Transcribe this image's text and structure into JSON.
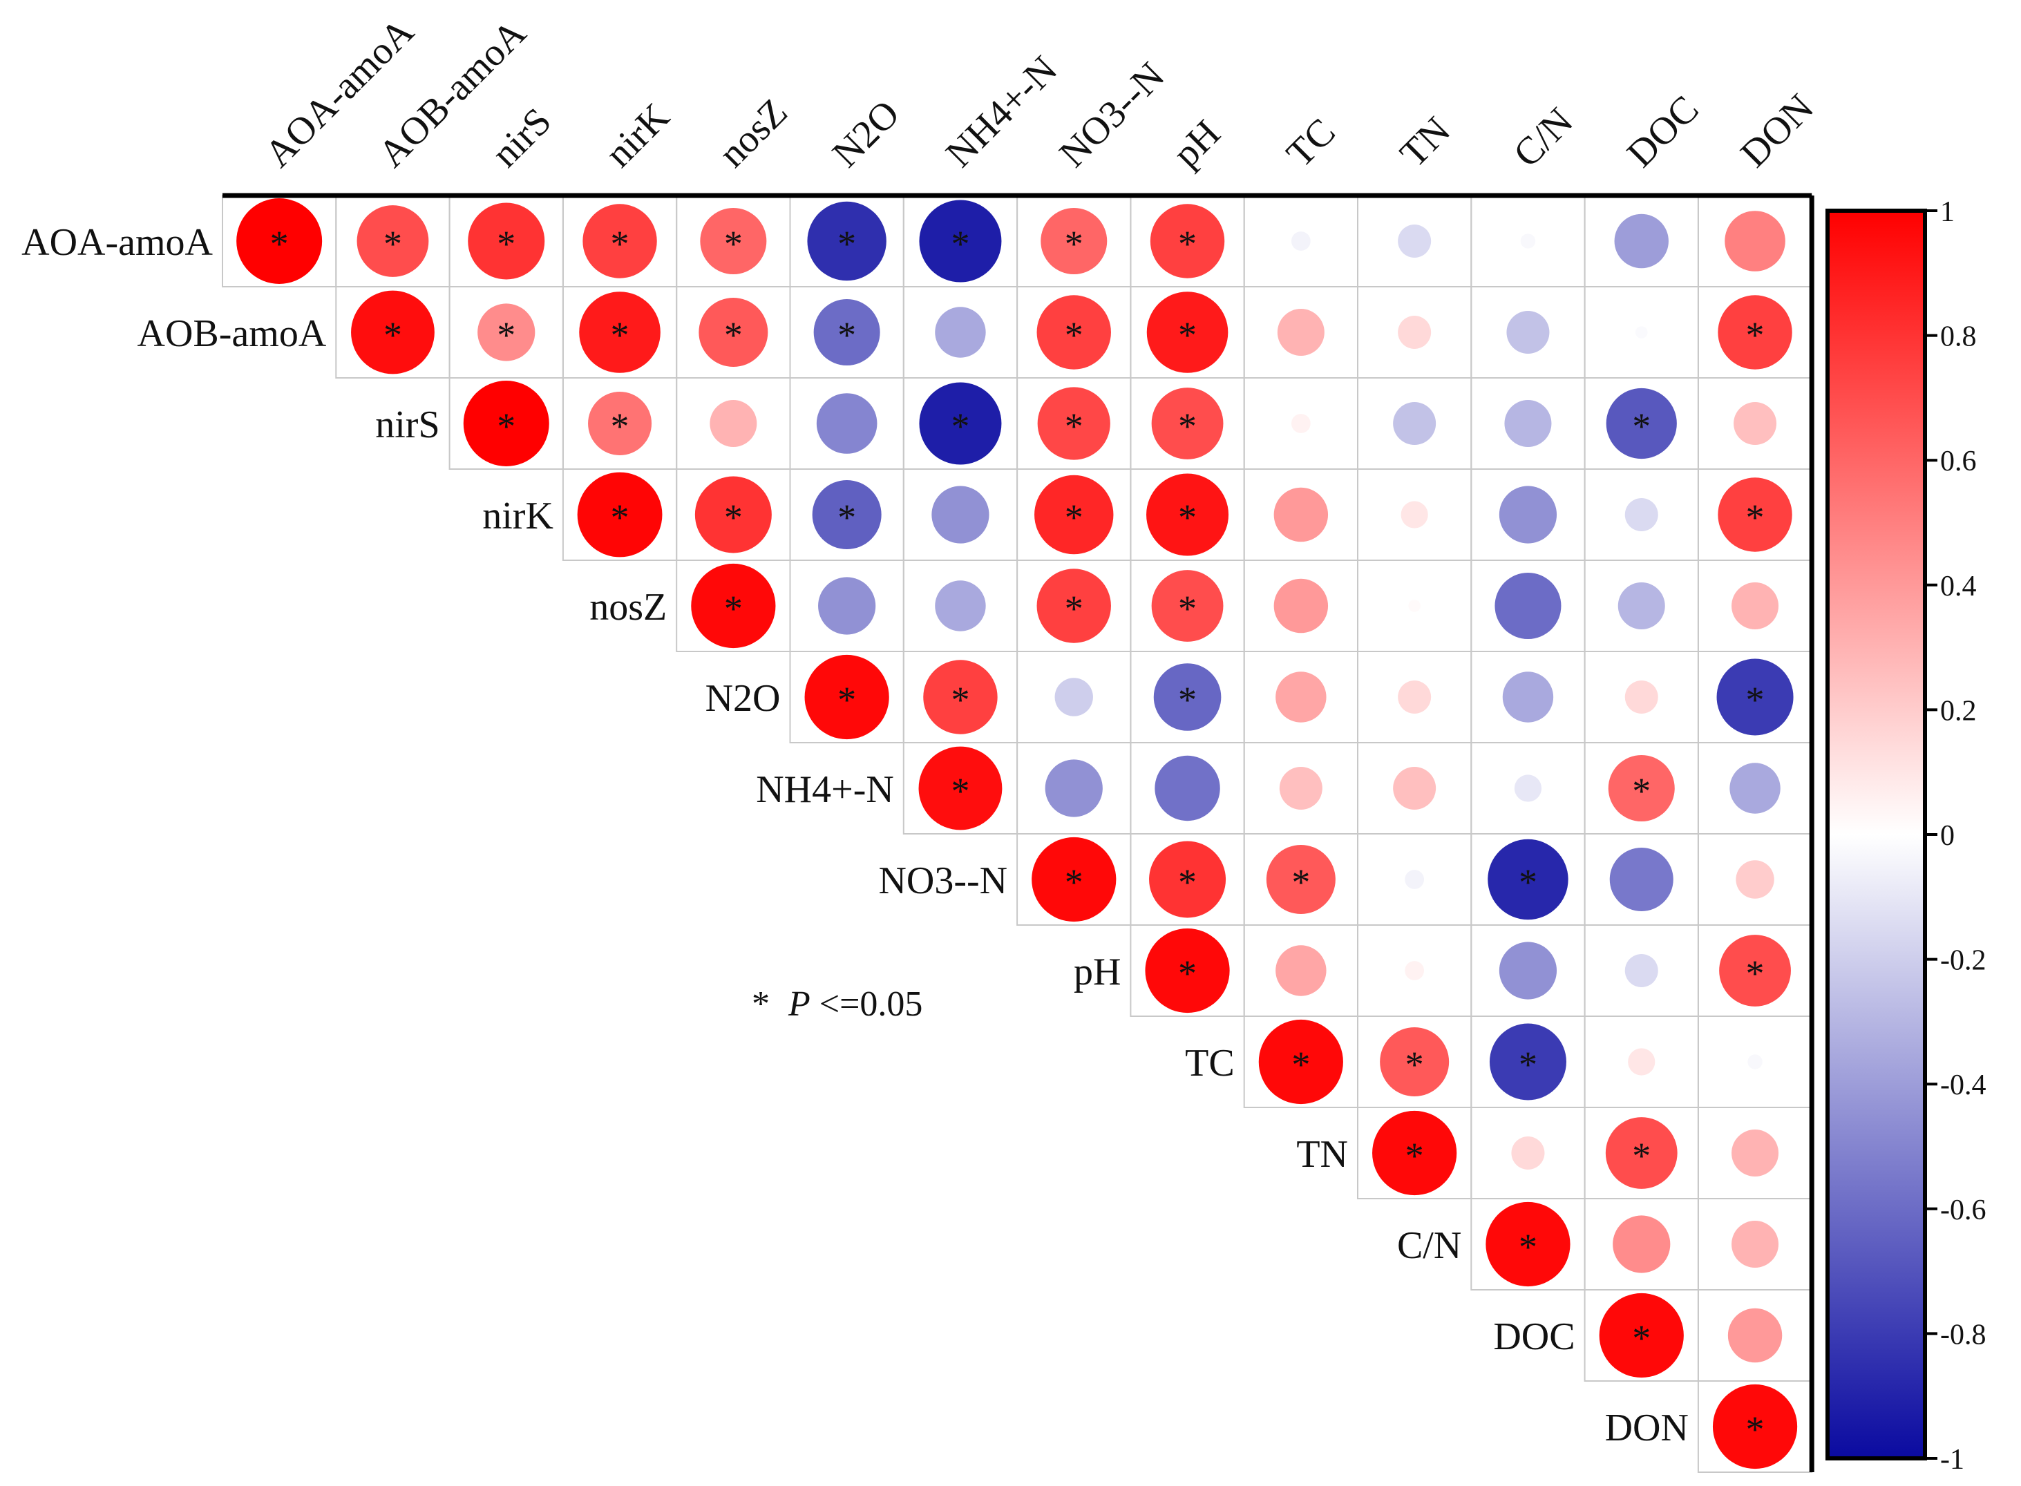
{
  "chart_data": {
    "type": "heatmap",
    "subtype": "upper-triangular correlation matrix (circle glyphs)",
    "variables": [
      "AOA-amoA",
      "AOB-amoA",
      "nirS",
      "nirK",
      "nosZ",
      "N2O",
      "NH4+-N",
      "NO3--N",
      "pH",
      "TC",
      "TN",
      "C/N",
      "DOC",
      "DON"
    ],
    "matrix": [
      [
        1.0,
        0.7,
        0.8,
        0.75,
        0.6,
        -0.85,
        -0.92,
        0.6,
        0.75,
        -0.05,
        -0.15,
        -0.03,
        -0.4,
        0.5
      ],
      [
        null,
        0.95,
        0.45,
        0.9,
        0.65,
        -0.6,
        -0.35,
        0.75,
        0.9,
        0.3,
        0.15,
        -0.25,
        -0.02,
        0.75
      ],
      [
        null,
        null,
        1.0,
        0.55,
        0.3,
        -0.5,
        -0.92,
        0.72,
        0.7,
        0.05,
        -0.25,
        -0.3,
        -0.68,
        0.25
      ],
      [
        null,
        null,
        null,
        0.98,
        0.8,
        -0.65,
        -0.45,
        0.85,
        0.92,
        0.4,
        0.1,
        -0.45,
        -0.15,
        0.75
      ],
      [
        null,
        null,
        null,
        null,
        0.97,
        -0.45,
        -0.35,
        0.75,
        0.7,
        0.4,
        0.02,
        -0.6,
        -0.3,
        0.3
      ],
      [
        null,
        null,
        null,
        null,
        null,
        0.97,
        0.75,
        -0.2,
        -0.62,
        0.35,
        0.15,
        -0.35,
        0.15,
        -0.8
      ],
      [
        null,
        null,
        null,
        null,
        null,
        null,
        0.95,
        -0.45,
        -0.58,
        0.25,
        0.25,
        -0.1,
        0.6,
        -0.35
      ],
      [
        null,
        null,
        null,
        null,
        null,
        null,
        null,
        0.97,
        0.8,
        0.65,
        -0.05,
        -0.88,
        -0.55,
        0.2
      ],
      [
        null,
        null,
        null,
        null,
        null,
        null,
        null,
        null,
        0.97,
        0.35,
        0.05,
        -0.45,
        -0.15,
        0.7
      ],
      [
        null,
        null,
        null,
        null,
        null,
        null,
        null,
        null,
        null,
        0.97,
        0.65,
        -0.8,
        0.1,
        -0.03
      ],
      [
        null,
        null,
        null,
        null,
        null,
        null,
        null,
        null,
        null,
        null,
        0.97,
        0.15,
        0.7,
        0.3
      ],
      [
        null,
        null,
        null,
        null,
        null,
        null,
        null,
        null,
        null,
        null,
        null,
        0.97,
        0.45,
        0.3
      ],
      [
        null,
        null,
        null,
        null,
        null,
        null,
        null,
        null,
        null,
        null,
        null,
        null,
        0.97,
        0.4
      ],
      [
        null,
        null,
        null,
        null,
        null,
        null,
        null,
        null,
        null,
        null,
        null,
        null,
        null,
        0.97
      ]
    ],
    "significant": [
      [
        "AOA-amoA",
        "AOA-amoA"
      ],
      [
        "AOA-amoA",
        "AOB-amoA"
      ],
      [
        "AOA-amoA",
        "nirS"
      ],
      [
        "AOA-amoA",
        "nirK"
      ],
      [
        "AOA-amoA",
        "nosZ"
      ],
      [
        "AOA-amoA",
        "N2O"
      ],
      [
        "AOA-amoA",
        "NH4+-N"
      ],
      [
        "AOA-amoA",
        "NO3--N"
      ],
      [
        "AOA-amoA",
        "pH"
      ],
      [
        "AOB-amoA",
        "AOB-amoA"
      ],
      [
        "AOB-amoA",
        "nirS"
      ],
      [
        "AOB-amoA",
        "nirK"
      ],
      [
        "AOB-amoA",
        "nosZ"
      ],
      [
        "AOB-amoA",
        "N2O"
      ],
      [
        "AOB-amoA",
        "NO3--N"
      ],
      [
        "AOB-amoA",
        "pH"
      ],
      [
        "AOB-amoA",
        "DON"
      ],
      [
        "nirS",
        "nirS"
      ],
      [
        "nirS",
        "nirK"
      ],
      [
        "nirS",
        "NH4+-N"
      ],
      [
        "nirS",
        "NO3--N"
      ],
      [
        "nirS",
        "pH"
      ],
      [
        "nirS",
        "DOC"
      ],
      [
        "nirK",
        "nirK"
      ],
      [
        "nirK",
        "nosZ"
      ],
      [
        "nirK",
        "N2O"
      ],
      [
        "nirK",
        "NO3--N"
      ],
      [
        "nirK",
        "pH"
      ],
      [
        "nirK",
        "DON"
      ],
      [
        "nosZ",
        "nosZ"
      ],
      [
        "nosZ",
        "NO3--N"
      ],
      [
        "nosZ",
        "pH"
      ],
      [
        "N2O",
        "N2O"
      ],
      [
        "N2O",
        "NH4+-N"
      ],
      [
        "N2O",
        "pH"
      ],
      [
        "N2O",
        "DON"
      ],
      [
        "NH4+-N",
        "NH4+-N"
      ],
      [
        "NH4+-N",
        "DOC"
      ],
      [
        "NO3--N",
        "NO3--N"
      ],
      [
        "NO3--N",
        "pH"
      ],
      [
        "NO3--N",
        "TC"
      ],
      [
        "NO3--N",
        "C/N"
      ],
      [
        "pH",
        "pH"
      ],
      [
        "pH",
        "DON"
      ],
      [
        "TC",
        "TC"
      ],
      [
        "TC",
        "TN"
      ],
      [
        "TC",
        "C/N"
      ],
      [
        "TN",
        "TN"
      ],
      [
        "TN",
        "DOC"
      ],
      [
        "C/N",
        "C/N"
      ],
      [
        "DOC",
        "DOC"
      ],
      [
        "DON",
        "DON"
      ]
    ],
    "significance_marker": "*",
    "legend_note": {
      "marker": "*",
      "label": "P",
      "rest": "<=0.05"
    },
    "colorbar": {
      "range": [
        -1,
        1
      ],
      "ticks": [
        1,
        0.8,
        0.6,
        0.4,
        0.2,
        0,
        -0.2,
        -0.4,
        -0.6,
        -0.8,
        -1
      ],
      "tick_labels": [
        "1",
        "0.8",
        "0.6",
        "0.4",
        "0.2",
        "0",
        "-0.2",
        "-0.4",
        "-0.6",
        "-0.8",
        "-1"
      ],
      "colors": {
        "negative": "#0a0aa0",
        "zero": "#ffffff",
        "positive": "#ff0000"
      },
      "placement": "right"
    }
  }
}
